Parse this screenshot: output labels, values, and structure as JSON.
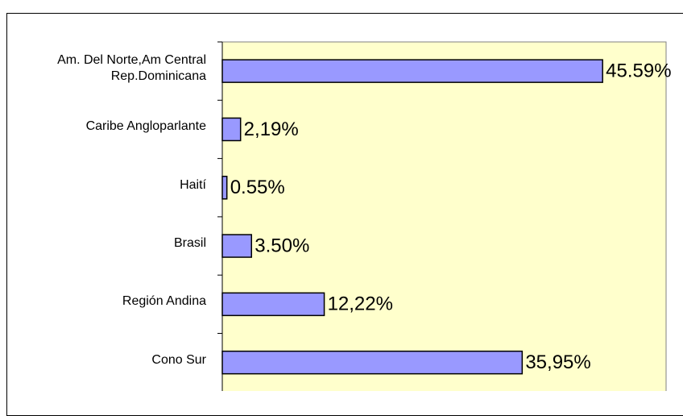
{
  "chart_data": {
    "type": "bar",
    "orientation": "horizontal",
    "categories": [
      "Am. Del Norte,Am Central\nRep.Dominicana",
      "Caribe Angloparlante",
      "Haití",
      "Brasil",
      "Región Andina",
      "Cono Sur"
    ],
    "values": [
      45.59,
      2.19,
      0.55,
      3.5,
      12.22,
      35.95
    ],
    "value_labels": [
      "45.59%",
      "2,19%",
      "0.55%",
      "3.50%",
      "12,22%",
      "35,95%"
    ],
    "color": "#9999ff",
    "plot_background": "#ffffcc",
    "xlim": [
      0,
      53.2
    ]
  }
}
